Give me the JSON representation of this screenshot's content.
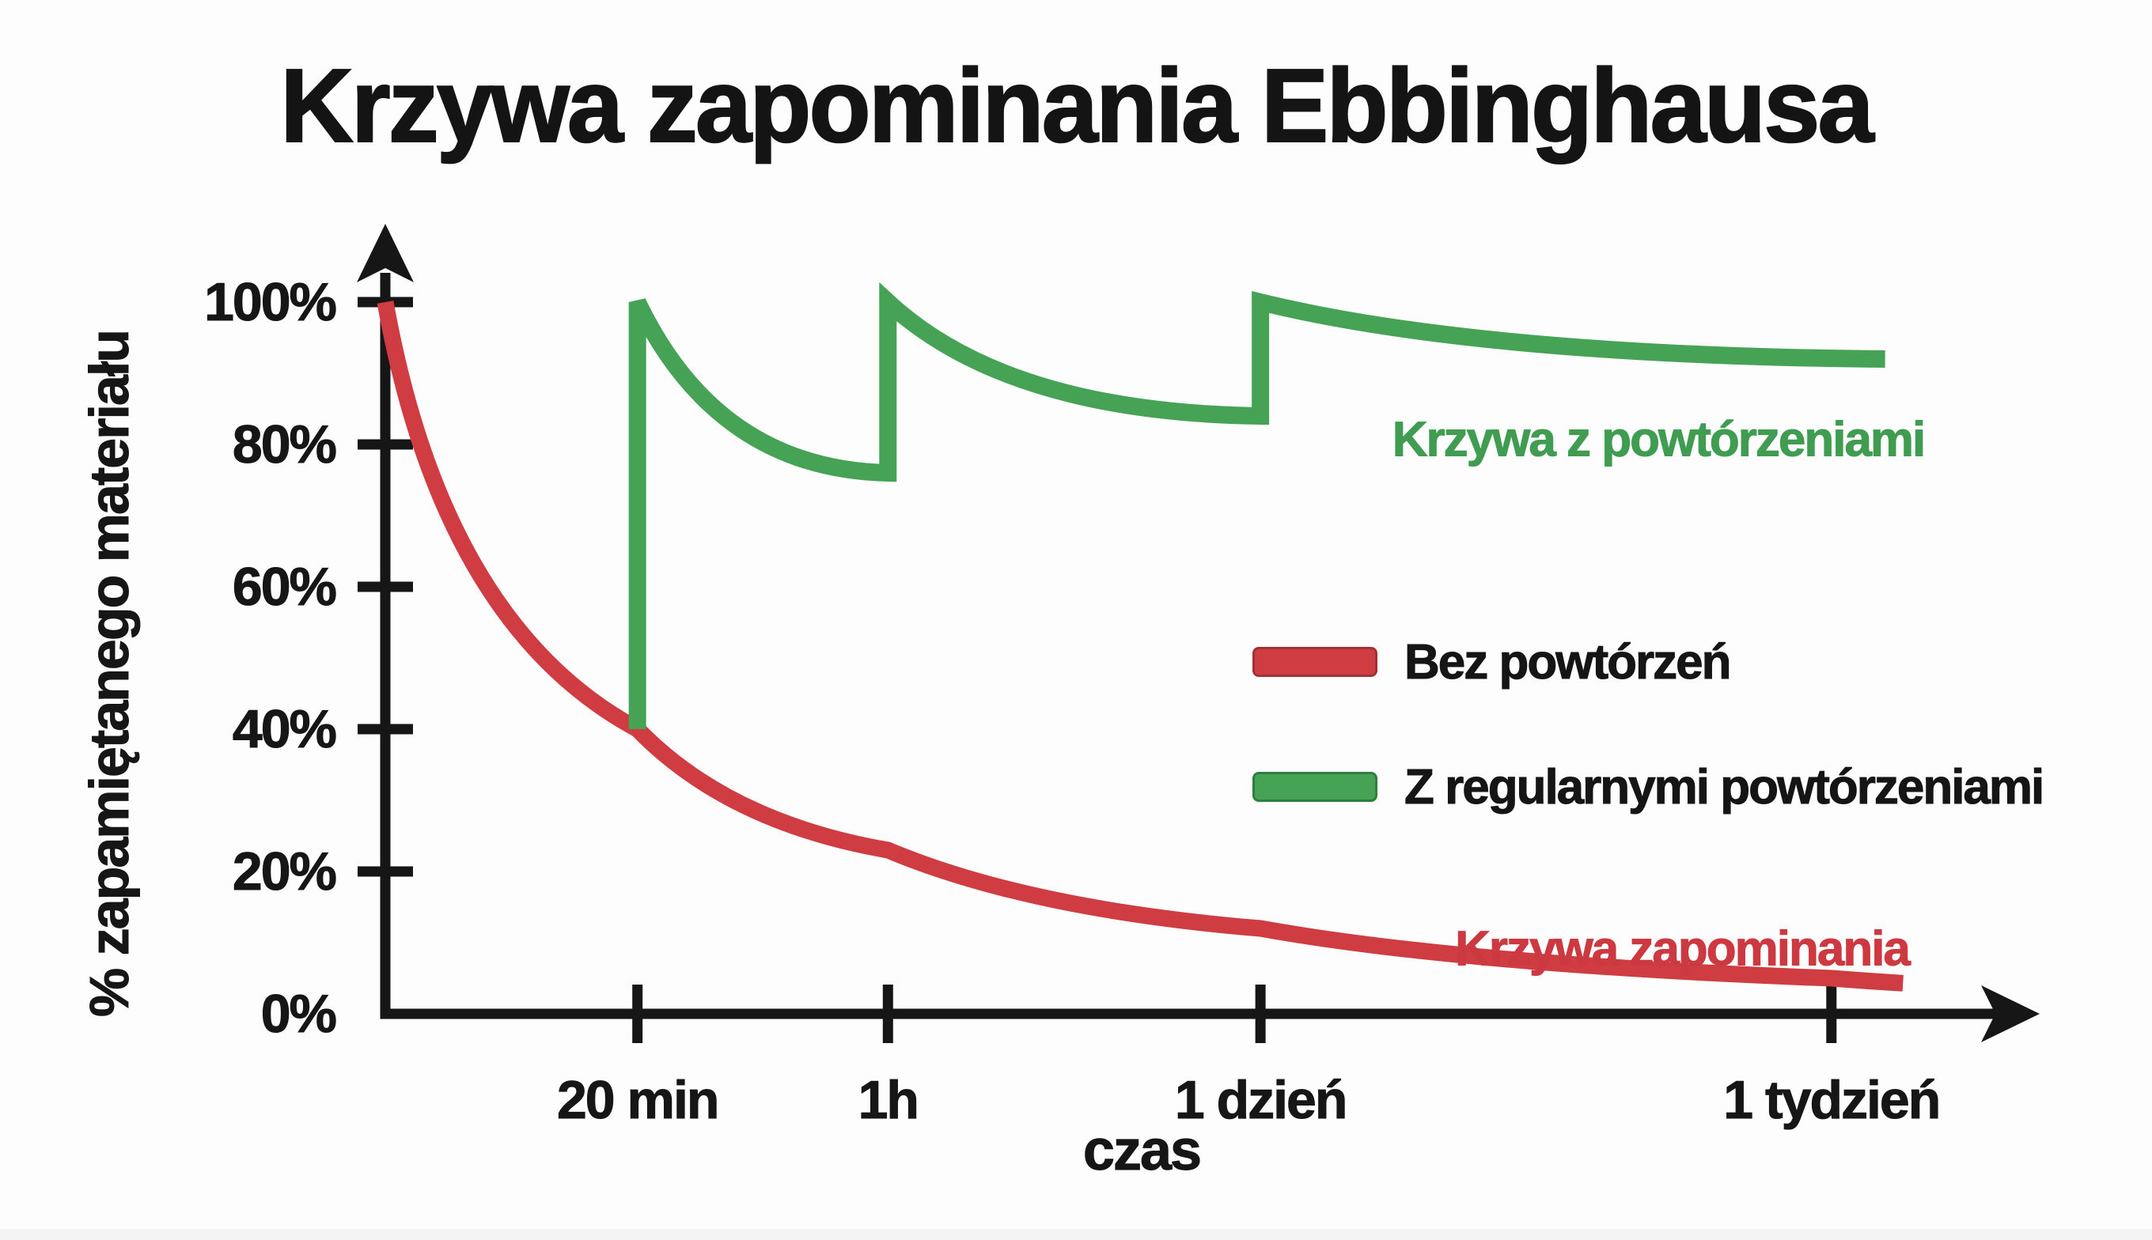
{
  "title": "Krzywa zapominania Ebbinghausa",
  "chart_data": {
    "type": "line",
    "title": "Krzywa zapominania Ebbinghausa",
    "xlabel": "czas",
    "ylabel": "% zapamiętanego materiału",
    "ylim": [
      0,
      100
    ],
    "grid": false,
    "background": "#fdfdfd",
    "axis_color": "#161616",
    "y_ticks": [
      {
        "label": "100%",
        "v": 100
      },
      {
        "label": "80%",
        "v": 80
      },
      {
        "label": "60%",
        "v": 60
      },
      {
        "label": "40%",
        "v": 40
      },
      {
        "label": "20%",
        "v": 20
      },
      {
        "label": "0%",
        "v": 0
      }
    ],
    "x_ticks": [
      {
        "label": "20 min",
        "t": 0.155
      },
      {
        "label": "1h",
        "t": 0.309
      },
      {
        "label": "1 dzień",
        "t": 0.538
      },
      {
        "label": "1 tydzień",
        "t": 0.889
      }
    ],
    "legend": {
      "position": "center-right",
      "items": [
        {
          "label": "Bez powtórzeń",
          "color": "#cf3c42",
          "border": "#a23136"
        },
        {
          "label": "Z regularnymi powtórzeniami",
          "color": "#46a356",
          "border": "#2f7e3e"
        }
      ]
    },
    "annotations": [
      {
        "text": "Krzywa z powtórzeniami",
        "color": "#3f9c50",
        "x": 2096,
        "y": 556
      },
      {
        "text": "Krzywa zapominania",
        "color": "#cd3940",
        "x": 2126,
        "y": 1200
      }
    ],
    "series": [
      {
        "name": "Bez powtórzeń",
        "color": "#cf3c42",
        "width": 21,
        "key_points": [
          {
            "at": "start",
            "pct": 100
          },
          {
            "at": "20 min",
            "pct": 40
          },
          {
            "at": "1h",
            "pct": 23
          },
          {
            "at": "1 dzień",
            "pct": 12
          },
          {
            "at": "1 tydzień",
            "pct": 5
          },
          {
            "at": "end",
            "pct": 4.3
          }
        ],
        "path": [
          {
            "move": [
              0,
              100
            ]
          },
          {
            "quad": {
              "c": [
                0.0355,
                54.7
              ],
              "to": [
                0.155,
                40
              ]
            }
          },
          {
            "quad": {
              "c": [
                0.2106,
                26.9
              ],
              "to": [
                0.309,
                23
              ]
            }
          },
          {
            "quad": {
              "c": [
                0.3954,
                14.7
              ],
              "to": [
                0.538,
                12
              ]
            }
          },
          {
            "quad": {
              "c": [
                0.663,
                6.9
              ],
              "to": [
                0.889,
                5
              ]
            }
          },
          {
            "quad": {
              "c": [
                0.911,
                4.6
              ],
              "to": [
                0.933,
                4.3
              ]
            }
          }
        ]
      },
      {
        "name": "Z regularnymi powtórzeniami",
        "color": "#46a356",
        "width": 22,
        "key_points": [
          {
            "at": "20 min (przed powtórką)",
            "pct": 40
          },
          {
            "at": "20 min (po powtórce)",
            "pct": 100
          },
          {
            "at": "1h (przed)",
            "pct": 76
          },
          {
            "at": "1h (po)",
            "pct": 100
          },
          {
            "at": "1 dzień (przed)",
            "pct": 84
          },
          {
            "at": "1 dzień (po)",
            "pct": 100
          },
          {
            "at": "end",
            "pct": 92
          }
        ],
        "path": [
          {
            "move": [
              0.155,
              40
            ]
          },
          {
            "line": [
              0.155,
              100
            ]
          },
          {
            "quad": {
              "c": [
                0.2043,
                76.5
              ],
              "to": [
                0.309,
                76
              ]
            }
          },
          {
            "line": [
              0.309,
              100
            ]
          },
          {
            "quad": {
              "c": [
                0.3823,
                84.5
              ],
              "to": [
                0.538,
                84
              ]
            }
          },
          {
            "line": [
              0.538,
              100
            ]
          },
          {
            "quad": {
              "c": [
                0.6722,
                92.5
              ],
              "to": [
                0.922,
                92
              ]
            }
          }
        ]
      }
    ]
  }
}
